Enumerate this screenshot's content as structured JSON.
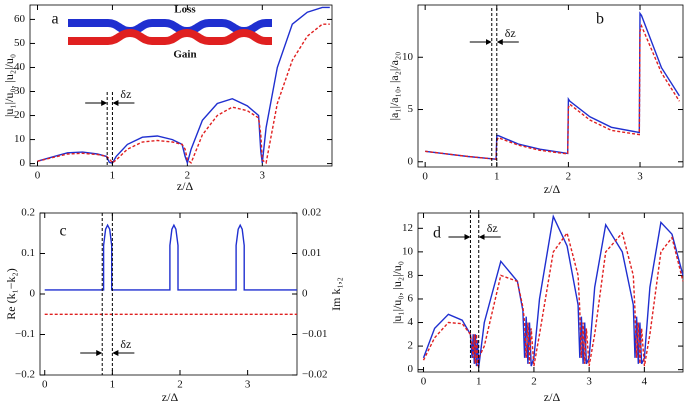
{
  "chart_data": [
    {
      "type": "line",
      "panel": "a",
      "xlabel": "z/Δ",
      "ylabel": "|u₁|/u₀, |u₂|/u₀",
      "annotations": [
        "δz",
        "Loss",
        "Gain"
      ],
      "xlim": [
        -0.1,
        3.93
      ],
      "ylim": [
        -1,
        66
      ],
      "xticks": [
        0,
        1,
        2,
        3
      ],
      "yticks": [
        0,
        10,
        20,
        30,
        40,
        50,
        60
      ],
      "vlines": [
        0.93,
        1.0
      ],
      "x": [
        0,
        0.2,
        0.4,
        0.6,
        0.8,
        0.92,
        0.96,
        1.0,
        1.05,
        1.2,
        1.4,
        1.6,
        1.8,
        1.93,
        1.97,
        2.0,
        2.05,
        2.2,
        2.4,
        2.6,
        2.8,
        2.95,
        2.98,
        3.0,
        3.05,
        3.2,
        3.4,
        3.6,
        3.8,
        3.9
      ],
      "series": [
        {
          "color": "#1f2fd0",
          "dash": false,
          "values": [
            1,
            2.8,
            4.5,
            4.8,
            4,
            3,
            0.5,
            0.2,
            3,
            8,
            11,
            11.5,
            10,
            8,
            3,
            0.3,
            6,
            18,
            25,
            27,
            24,
            20,
            5,
            0.3,
            15,
            40,
            58,
            63,
            65,
            65
          ]
        },
        {
          "color": "#e02020",
          "dash": true,
          "values": [
            1,
            2.5,
            4,
            4.3,
            3.8,
            3,
            2,
            0.3,
            1.5,
            6,
            9,
            9.6,
            9,
            8,
            6,
            1.5,
            0.3,
            12,
            20,
            23.5,
            22,
            19,
            12,
            1.5,
            0.3,
            25,
            43,
            53,
            58,
            58
          ]
        }
      ]
    },
    {
      "type": "line",
      "panel": "b",
      "xlabel": "z/Δ",
      "ylabel": "|a₁|/a₁₀, |a₂|/a₂₀",
      "annotations": [
        "δz"
      ],
      "xlim": [
        -0.1,
        3.6
      ],
      "ylim": [
        -0.5,
        15
      ],
      "xticks": [
        0,
        1,
        2,
        3
      ],
      "yticks": [
        0,
        5,
        10
      ],
      "vlines": [
        0.93,
        1.0
      ],
      "x": [
        0,
        0.3,
        0.6,
        0.9,
        0.99,
        1.0,
        1.02,
        1.3,
        1.6,
        1.99,
        2.0,
        2.02,
        2.3,
        2.6,
        2.99,
        3.0,
        3.02,
        3.3,
        3.55
      ],
      "series": [
        {
          "color": "#1f2fd0",
          "dash": false,
          "values": [
            1,
            0.75,
            0.5,
            0.3,
            0.25,
            2.5,
            2.5,
            1.7,
            1.2,
            0.8,
            6,
            5.8,
            4.3,
            3.3,
            2.8,
            14.2,
            14,
            9,
            6.3
          ]
        },
        {
          "color": "#e02020",
          "dash": true,
          "values": [
            1,
            0.75,
            0.5,
            0.3,
            0.25,
            2.0,
            2.3,
            1.6,
            1.1,
            0.75,
            5.2,
            5.5,
            4,
            3,
            2.6,
            12.5,
            13,
            8.5,
            5.8
          ]
        }
      ]
    },
    {
      "type": "line",
      "panel": "c",
      "xlabel": "z/Δ",
      "ylabel": "Re (k₁−k₂)",
      "y2label": "Im k₁,₂",
      "annotations": [
        "δz"
      ],
      "xlim": [
        -0.07,
        3.73
      ],
      "ylim": [
        -0.2,
        0.2
      ],
      "y2lim": [
        -0.02,
        0.02
      ],
      "xticks": [
        0,
        1,
        2,
        3
      ],
      "yticks": [
        {
          "value": -0.2,
          "label": "−0.2"
        },
        {
          "value": -0.1,
          "label": "−0.1"
        },
        0,
        0.1,
        0.2
      ],
      "y2ticks": [
        {
          "value": -0.02,
          "label": "−0.02"
        },
        {
          "value": -0.01,
          "label": "−0.01"
        },
        0,
        0.01,
        0.02
      ],
      "vlines": [
        0.85,
        1.0
      ],
      "x": [
        0,
        0.87,
        0.87,
        0.9,
        0.93,
        0.96,
        0.99,
        0.99,
        1.85,
        1.85,
        1.88,
        1.91,
        1.94,
        1.97,
        1.97,
        2.83,
        2.83,
        2.86,
        2.89,
        2.92,
        2.95,
        2.95,
        3.73
      ],
      "series": [
        {
          "color": "#1f2fd0",
          "dash": false,
          "values": [
            0.01,
            0.01,
            0.12,
            0.16,
            0.17,
            0.16,
            0.12,
            0.01,
            0.01,
            0.12,
            0.16,
            0.17,
            0.16,
            0.12,
            0.01,
            0.01,
            0.12,
            0.16,
            0.17,
            0.16,
            0.12,
            0.01,
            0.01
          ]
        },
        {
          "color": "#e02020",
          "dash": true,
          "axis": "y2",
          "values": [
            -0.005,
            -0.005,
            -0.005,
            -0.005,
            -0.005,
            -0.005,
            -0.005,
            -0.005,
            -0.005,
            -0.005,
            -0.005,
            -0.005,
            -0.005,
            -0.005,
            -0.005,
            -0.005,
            -0.005,
            -0.005,
            -0.005,
            -0.005,
            -0.005,
            -0.005,
            -0.005
          ]
        }
      ]
    },
    {
      "type": "line",
      "panel": "d",
      "xlabel": "z/Δ",
      "ylabel": "|u₁|/u₀, |u₂|/u₀",
      "annotations": [
        "δz"
      ],
      "xlim": [
        -0.1,
        4.7
      ],
      "ylim": [
        -0.2,
        13.3
      ],
      "xticks": [
        0,
        1,
        2,
        3,
        4
      ],
      "yticks": [
        0,
        2,
        4,
        6,
        8,
        10,
        12
      ],
      "vlines": [
        0.85,
        1.0
      ],
      "x": [
        0,
        0.2,
        0.45,
        0.7,
        0.85,
        0.88,
        0.9,
        0.92,
        0.94,
        0.96,
        0.98,
        1.0,
        1.1,
        1.4,
        1.7,
        1.8,
        1.83,
        1.86,
        1.89,
        1.92,
        1.95,
        2.0,
        2.1,
        2.35,
        2.6,
        2.8,
        2.83,
        2.86,
        2.89,
        2.92,
        2.95,
        3.0,
        3.1,
        3.3,
        3.6,
        3.8,
        3.83,
        3.86,
        3.89,
        3.92,
        3.95,
        4.0,
        4.1,
        4.3,
        4.5,
        4.7
      ],
      "series": [
        {
          "color": "#1f2fd0",
          "dash": false,
          "values": [
            1,
            3.5,
            4.7,
            4.2,
            3,
            1,
            3,
            0.5,
            3,
            0.3,
            2.5,
            0.2,
            4,
            9.2,
            7.5,
            5,
            1,
            4.5,
            0.5,
            4,
            0.3,
            1,
            6,
            13,
            10.5,
            5.5,
            1,
            4.5,
            0.5,
            4,
            0.5,
            1,
            7,
            12.3,
            10,
            5.5,
            1,
            4.5,
            0.5,
            4,
            0.5,
            1,
            7,
            12.5,
            11.5,
            8
          ]
        },
        {
          "color": "#e02020",
          "dash": true,
          "values": [
            0.8,
            2.7,
            4,
            3.9,
            3,
            2,
            1,
            3,
            0.5,
            3,
            0.3,
            1,
            2,
            8,
            7.5,
            5.3,
            4,
            1,
            4,
            0.5,
            3.5,
            0.3,
            3,
            10,
            11.6,
            8,
            5,
            1,
            4,
            0.5,
            3.5,
            0.3,
            3,
            10,
            11.6,
            8,
            5,
            1,
            4,
            0.5,
            3.5,
            0.3,
            3,
            10,
            11.2,
            7.5
          ]
        }
      ]
    }
  ]
}
